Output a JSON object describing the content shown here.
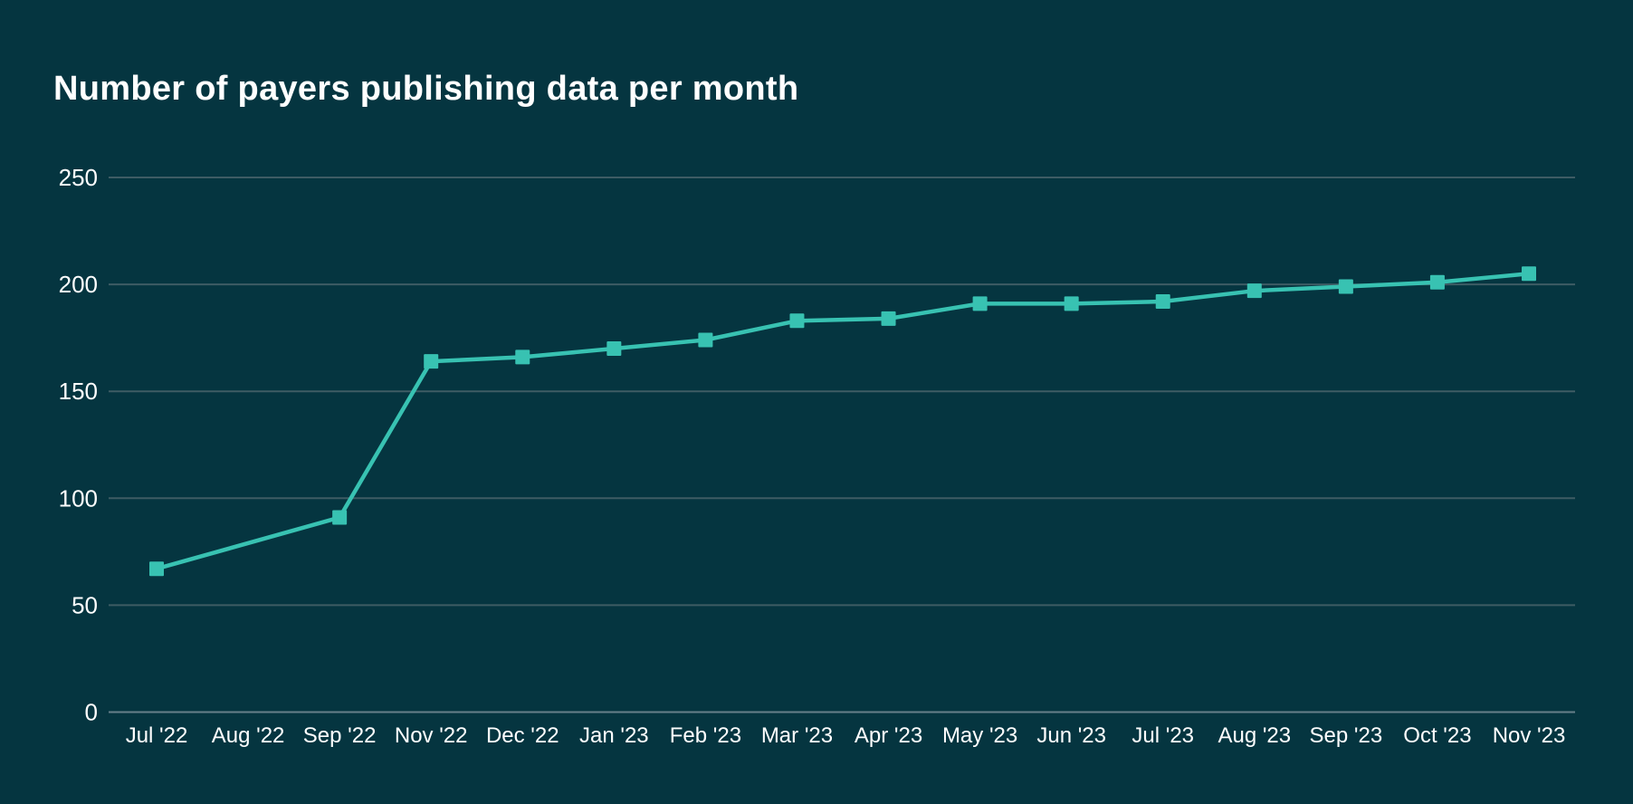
{
  "chart_data": {
    "type": "line",
    "title": "Number of payers publishing data per month",
    "categories": [
      "Jul '22",
      "Aug '22",
      "Sep '22",
      "Nov '22",
      "Dec '22",
      "Jan '23",
      "Feb '23",
      "Mar '23",
      "Apr '23",
      "May '23",
      "Jun '23",
      "Jul '23",
      "Aug '23",
      "Sep '23",
      "Oct '23",
      "Nov '23"
    ],
    "values": [
      67,
      null,
      91,
      164,
      166,
      170,
      174,
      183,
      184,
      191,
      191,
      192,
      197,
      199,
      201,
      205
    ],
    "xlabel": "",
    "ylabel": "",
    "ylim": [
      0,
      250
    ],
    "yticks": [
      0,
      50,
      100,
      150,
      200,
      250
    ],
    "grid": true,
    "legend": false,
    "marker_shape": "square",
    "notes": {
      "missing_marker_category": "Aug '22",
      "skipped_month_on_axis": "Oct '22"
    },
    "colors": {
      "background": "#053540",
      "line": "#38c2b2",
      "marker": "#38c2b2",
      "gridline": "#3e5c64",
      "axis_line": "#66808a",
      "tick_text": "#ffffff",
      "title_text": "#ffffff"
    }
  }
}
